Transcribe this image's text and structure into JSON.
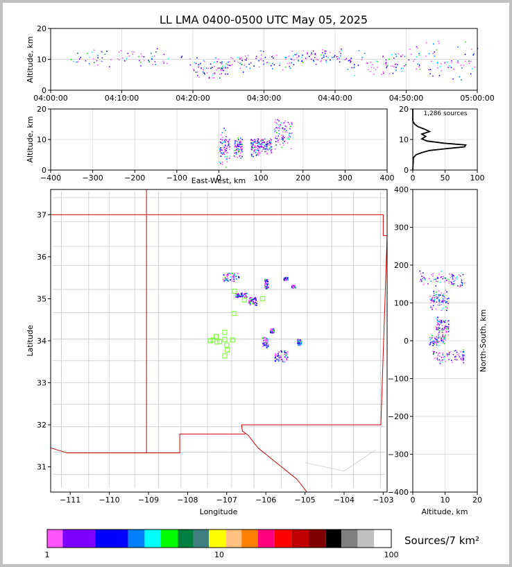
{
  "chart_data": [
    {
      "id": "time_panel",
      "type": "scatter",
      "title": "LL LMA 0400-0500 UTC May 05, 2025",
      "ylabel": "Altitude, km",
      "xlim": [
        "04:00:00",
        "05:00:00"
      ],
      "xticks": [
        "04:00:00",
        "04:10:00",
        "04:20:00",
        "04:30:00",
        "04:40:00",
        "04:50:00",
        "05:00:00"
      ],
      "ylim": [
        0,
        20
      ],
      "yticks": [
        "0",
        "10",
        "20"
      ],
      "grid": true,
      "clusters": [
        {
          "t_min": [
            2,
            20
          ],
          "alt": [
            8,
            13
          ]
        },
        {
          "t_min": [
            20,
            25
          ],
          "alt": [
            5,
            10
          ]
        },
        {
          "t_min": [
            25,
            34
          ],
          "alt": [
            7,
            12
          ]
        },
        {
          "t_min": [
            34,
            41
          ],
          "alt": [
            9,
            13
          ]
        },
        {
          "t_min": [
            41,
            50
          ],
          "alt": [
            6,
            12
          ]
        },
        {
          "t_min": [
            50,
            60
          ],
          "alt": [
            5,
            15
          ]
        }
      ]
    },
    {
      "id": "ew_panel",
      "type": "scatter",
      "xlabel": "East-West, km",
      "ylabel": "Altitude, km",
      "xlim": [
        -400,
        400
      ],
      "xticks": [
        "−400",
        "−300",
        "−200",
        "−100",
        "0",
        "100",
        "200",
        "300",
        "400"
      ],
      "ylim": [
        0,
        20
      ],
      "yticks": [
        "0",
        "10",
        "20"
      ],
      "grid": true,
      "clusters": [
        {
          "x": [
            0,
            25
          ],
          "alt": [
            2,
            12
          ]
        },
        {
          "x": [
            35,
            55
          ],
          "alt": [
            5,
            10
          ]
        },
        {
          "x": [
            75,
            95
          ],
          "alt": [
            5,
            10
          ]
        },
        {
          "x": [
            95,
            125
          ],
          "alt": [
            6,
            10
          ]
        },
        {
          "x": [
            130,
            175
          ],
          "alt": [
            8,
            16
          ]
        }
      ]
    },
    {
      "id": "histogram",
      "type": "line",
      "annotation": "1,286 sources",
      "xlim": [
        0,
        100
      ],
      "xticks": [
        "0",
        "50",
        "100"
      ],
      "ylim": [
        0,
        20
      ],
      "yticks": [
        "0",
        "10",
        "20"
      ],
      "profile": [
        {
          "alt": 0,
          "count": 0
        },
        {
          "alt": 4,
          "count": 1
        },
        {
          "alt": 5,
          "count": 5
        },
        {
          "alt": 5.7,
          "count": 14
        },
        {
          "alt": 6.4,
          "count": 26
        },
        {
          "alt": 7,
          "count": 52
        },
        {
          "alt": 7.6,
          "count": 80
        },
        {
          "alt": 8.2,
          "count": 82
        },
        {
          "alt": 8.8,
          "count": 48
        },
        {
          "alt": 9.5,
          "count": 22
        },
        {
          "alt": 10.2,
          "count": 14
        },
        {
          "alt": 11,
          "count": 20
        },
        {
          "alt": 11.8,
          "count": 14
        },
        {
          "alt": 12.6,
          "count": 26
        },
        {
          "alt": 13.4,
          "count": 18
        },
        {
          "alt": 14.2,
          "count": 8
        },
        {
          "alt": 15,
          "count": 3
        },
        {
          "alt": 16,
          "count": 0
        },
        {
          "alt": 20,
          "count": 0
        }
      ]
    },
    {
      "id": "map",
      "type": "scatter",
      "xlabel": "Longitude",
      "ylabel": "Latitude",
      "xlim": [
        -111.5,
        -102.9
      ],
      "xticks": [
        "−111",
        "−110",
        "−109",
        "−108",
        "−107",
        "−106",
        "−105",
        "−104",
        "−103"
      ],
      "ylim": [
        30.4,
        37.6
      ],
      "yticks": [
        "31",
        "32",
        "33",
        "34",
        "35",
        "36",
        "37"
      ],
      "stations": [
        {
          "lon": -106.8,
          "lat": 35.18
        },
        {
          "lon": -106.55,
          "lat": 34.97
        },
        {
          "lon": -106.08,
          "lat": 35.0
        },
        {
          "lon": -106.82,
          "lat": 34.65
        },
        {
          "lon": -107.27,
          "lat": 34.1
        },
        {
          "lon": -107.05,
          "lat": 34.2
        },
        {
          "lon": -107.35,
          "lat": 34.02
        },
        {
          "lon": -107.18,
          "lat": 33.98
        },
        {
          "lon": -107.05,
          "lat": 34.03
        },
        {
          "lon": -106.85,
          "lat": 34.02
        },
        {
          "lon": -107.0,
          "lat": 33.9
        },
        {
          "lon": -106.98,
          "lat": 33.78
        },
        {
          "lon": -107.05,
          "lat": 33.64
        },
        {
          "lon": -107.42,
          "lat": 34.0
        },
        {
          "lon": -107.25,
          "lat": 33.97
        }
      ],
      "clusters": [
        {
          "lon": [
            -107.1,
            -106.7
          ],
          "lat": [
            35.42,
            35.62
          ]
        },
        {
          "lon": [
            -106.8,
            -106.5
          ],
          "lat": [
            35.05,
            35.15
          ]
        },
        {
          "lon": [
            -106.45,
            -106.25
          ],
          "lat": [
            34.85,
            35.05
          ]
        },
        {
          "lon": [
            -106.05,
            -105.95
          ],
          "lat": [
            35.25,
            35.48
          ]
        },
        {
          "lon": [
            -105.55,
            -105.45
          ],
          "lat": [
            35.45,
            35.52
          ]
        },
        {
          "lon": [
            -105.35,
            -105.25
          ],
          "lat": [
            35.27,
            35.33
          ]
        },
        {
          "lon": [
            -106.1,
            -105.95
          ],
          "lat": [
            33.85,
            34.1
          ]
        },
        {
          "lon": [
            -105.9,
            -105.8
          ],
          "lat": [
            34.2,
            34.3
          ]
        },
        {
          "lon": [
            -105.8,
            -105.45
          ],
          "lat": [
            33.5,
            33.78
          ]
        },
        {
          "lon": [
            -105.2,
            -105.1
          ],
          "lat": [
            33.9,
            34.05
          ]
        }
      ]
    },
    {
      "id": "ns_panel",
      "type": "scatter",
      "xlabel": "Altitude, km",
      "ylabel": "North-South, km",
      "xlim": [
        0,
        20
      ],
      "xticks": [
        "0",
        "10",
        "20"
      ],
      "ylim": [
        -400,
        400
      ],
      "yticks": [
        "−400",
        "−300",
        "−200",
        "−100",
        "0",
        "100",
        "200",
        "300",
        "400"
      ],
      "grid": true,
      "clusters": [
        {
          "alt": [
            2,
            16
          ],
          "y": [
            150,
            180
          ]
        },
        {
          "alt": [
            5,
            11
          ],
          "y": [
            90,
            130
          ]
        },
        {
          "alt": [
            7,
            11
          ],
          "y": [
            20,
            60
          ]
        },
        {
          "alt": [
            5,
            10
          ],
          "y": [
            -10,
            15
          ]
        },
        {
          "alt": [
            6,
            16
          ],
          "y": [
            -55,
            -25
          ]
        }
      ]
    }
  ],
  "colorbar": {
    "label": "Sources/7 km²",
    "ticks": [
      "1",
      "10",
      "100"
    ],
    "colors": [
      "#ff55ff",
      "#8000ff",
      "#0000ff",
      "#0080ff",
      "#00ffff",
      "#00ff00",
      "#008040",
      "#408080",
      "#ffff00",
      "#ffc080",
      "#ff8000",
      "#ff0080",
      "#ff0000",
      "#c00000",
      "#800000",
      "#000000",
      "#808080",
      "#c0c0c0",
      "#ffffff"
    ]
  },
  "palette": {
    "state_border": "#d00000",
    "county_border": "#c8c8c8",
    "station": "#80ff40",
    "grid": "#e0e0e0"
  }
}
